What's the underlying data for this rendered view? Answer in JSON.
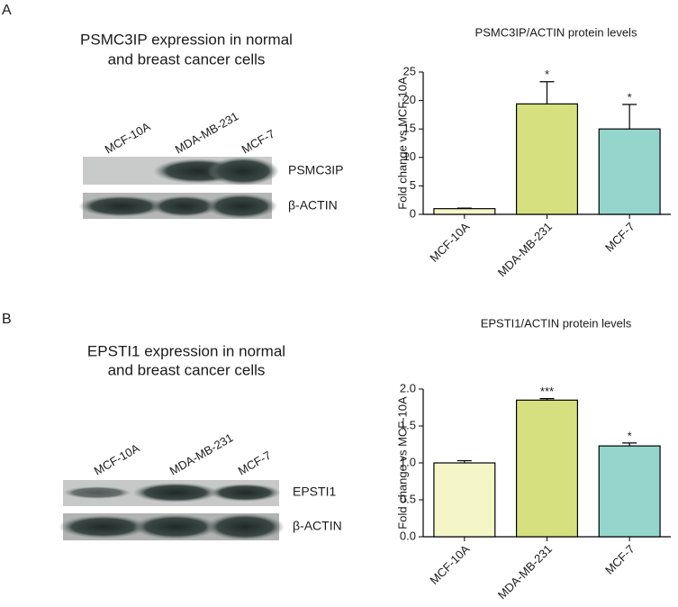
{
  "panels": [
    {
      "label": "A",
      "blot_title": [
        "PSMC3IP expression in normal",
        "and breast cancer cells"
      ],
      "lanes": [
        "MCF-10A",
        "MDA-MB-231",
        "MCF-7"
      ],
      "bands": [
        "PSMC3IP",
        "β-ACTIN"
      ]
    },
    {
      "label": "B",
      "blot_title": [
        "EPSTI1 expression in normal",
        "and breast cancer cells"
      ],
      "lanes": [
        "MCF-10A",
        "MDA-MB-231",
        "MCF-7"
      ],
      "bands": [
        "EPSTI1",
        "β-ACTIN"
      ]
    }
  ],
  "chart_data": [
    {
      "type": "bar",
      "title": "PSMC3IP/ACTIN protein levels",
      "y_label": "Fold change vs MCF-10A",
      "categories": [
        "MCF-10A",
        "MDA-MB-231",
        "MCF-7"
      ],
      "values": [
        1,
        19.4,
        15
      ],
      "errors": [
        0.1,
        3.9,
        4.3
      ],
      "annotations": [
        null,
        "*",
        "*"
      ],
      "colors": [
        "#f4f6c8",
        "#d6e07e",
        "#94d6cc"
      ],
      "ylim": [
        0,
        25
      ],
      "yticks": [
        0,
        5,
        10,
        15,
        20,
        25
      ]
    },
    {
      "type": "bar",
      "title": "EPSTI1/ACTIN protein levels",
      "y_label": "Fold change vs MCF-10A",
      "categories": [
        "MCF-10A",
        "MDA-MB-231",
        "MCF-7"
      ],
      "values": [
        1.0,
        1.85,
        1.23
      ],
      "errors": [
        0.03,
        0.02,
        0.04
      ],
      "annotations": [
        null,
        "***",
        "*"
      ],
      "colors": [
        "#f4f6c8",
        "#d6e07e",
        "#94d6cc"
      ],
      "ylim": [
        0,
        2.0
      ],
      "yticks": [
        {
          "value": 0,
          "label": "0.0"
        },
        {
          "value": 0.5,
          "label": "0.5"
        },
        {
          "value": 1,
          "label": "1.0"
        },
        {
          "value": 1.5,
          "label": "1.5"
        },
        {
          "value": 2,
          "label": "2.0"
        }
      ]
    }
  ]
}
